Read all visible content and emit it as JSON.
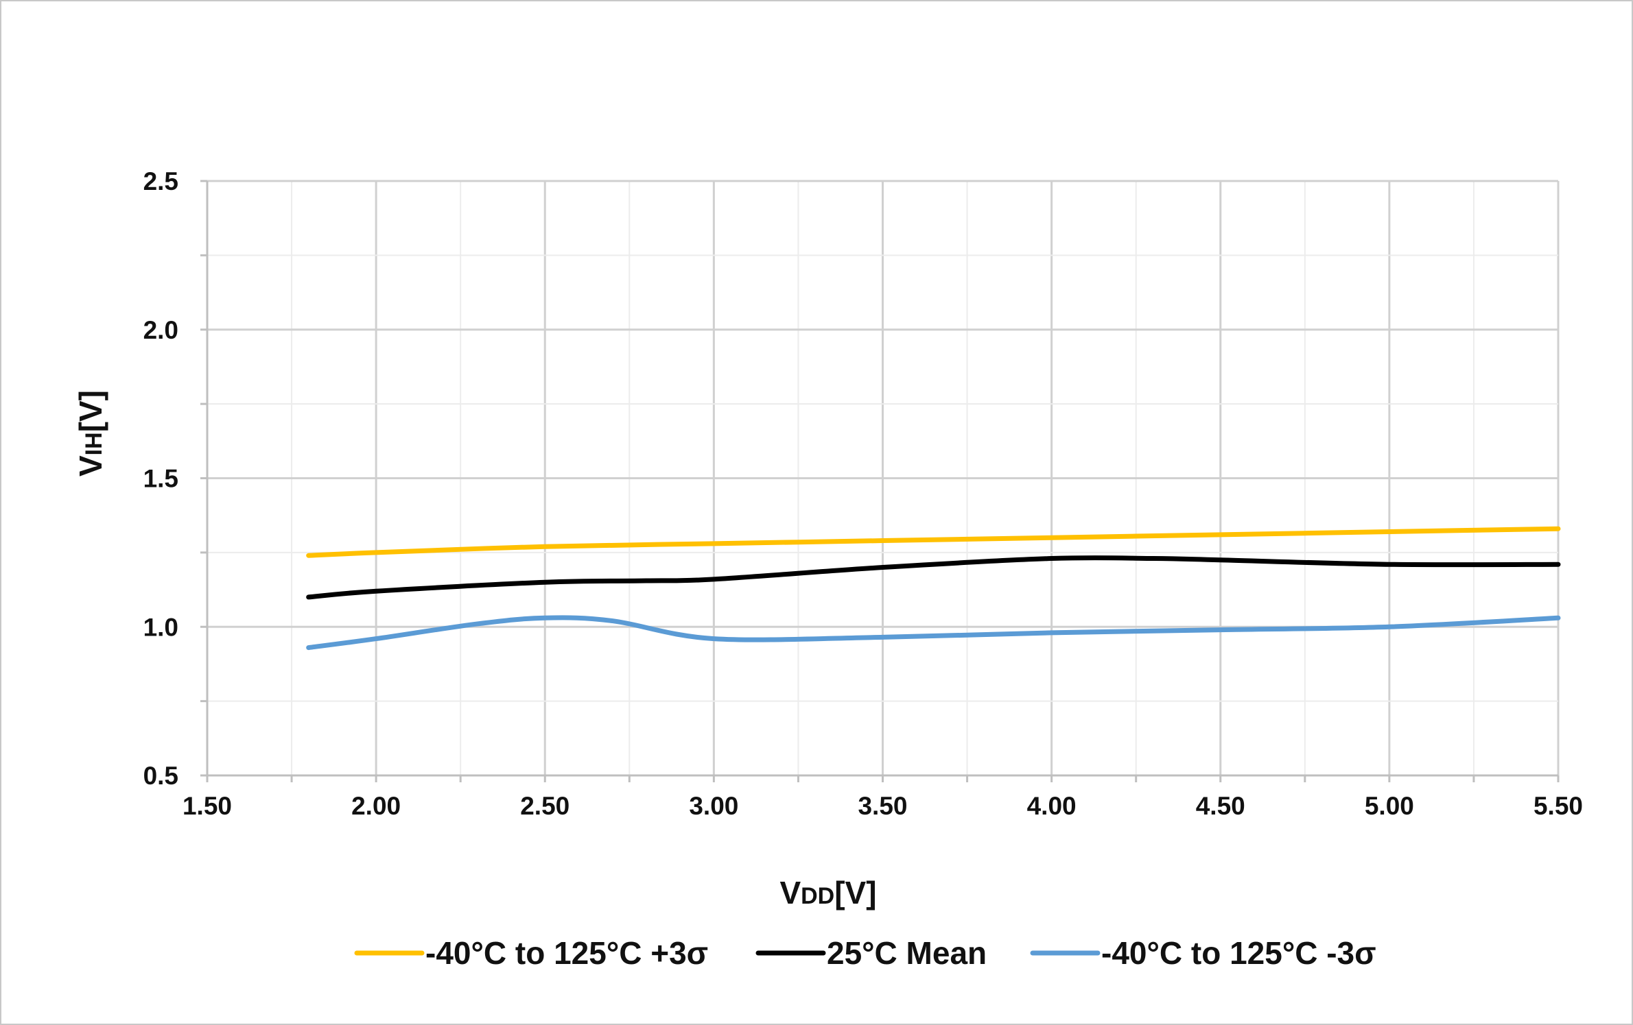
{
  "chart_data": {
    "type": "line",
    "xlabel_main": "V",
    "xlabel_sub": "DD",
    "xlabel_unit": "[V]",
    "ylabel_main": "V",
    "ylabel_sub": "IH",
    "ylabel_unit": "[V]",
    "xlim": [
      1.5,
      5.5
    ],
    "ylim": [
      0.5,
      2.5
    ],
    "x_ticks": [
      "1.50",
      "2.00",
      "2.50",
      "3.00",
      "3.50",
      "4.00",
      "4.50",
      "5.00",
      "5.50"
    ],
    "y_ticks": [
      "0.5",
      "1.0",
      "1.5",
      "2.0",
      "2.5"
    ],
    "grid": true,
    "legend_position": "bottom",
    "series": [
      {
        "name": "-40°C to 125°C +3σ",
        "color": "#ffc000",
        "x": [
          1.8,
          2.0,
          2.5,
          3.0,
          3.5,
          4.0,
          4.5,
          5.0,
          5.5
        ],
        "y": [
          1.24,
          1.25,
          1.27,
          1.28,
          1.29,
          1.3,
          1.31,
          1.32,
          1.33
        ]
      },
      {
        "name": "25°C Mean",
        "color": "#000000",
        "x": [
          1.8,
          2.0,
          2.5,
          2.8,
          3.0,
          3.5,
          4.0,
          4.3,
          4.5,
          5.0,
          5.5
        ],
        "y": [
          1.1,
          1.12,
          1.15,
          1.155,
          1.16,
          1.2,
          1.23,
          1.23,
          1.225,
          1.21,
          1.21
        ]
      },
      {
        "name": "-40°C to 125°C -3σ",
        "color": "#5b9bd5",
        "x": [
          1.8,
          2.0,
          2.3,
          2.5,
          2.7,
          3.0,
          3.5,
          4.0,
          4.5,
          5.0,
          5.5
        ],
        "y": [
          0.93,
          0.96,
          1.01,
          1.03,
          1.02,
          0.96,
          0.965,
          0.98,
          0.99,
          1.0,
          1.03
        ]
      }
    ]
  }
}
